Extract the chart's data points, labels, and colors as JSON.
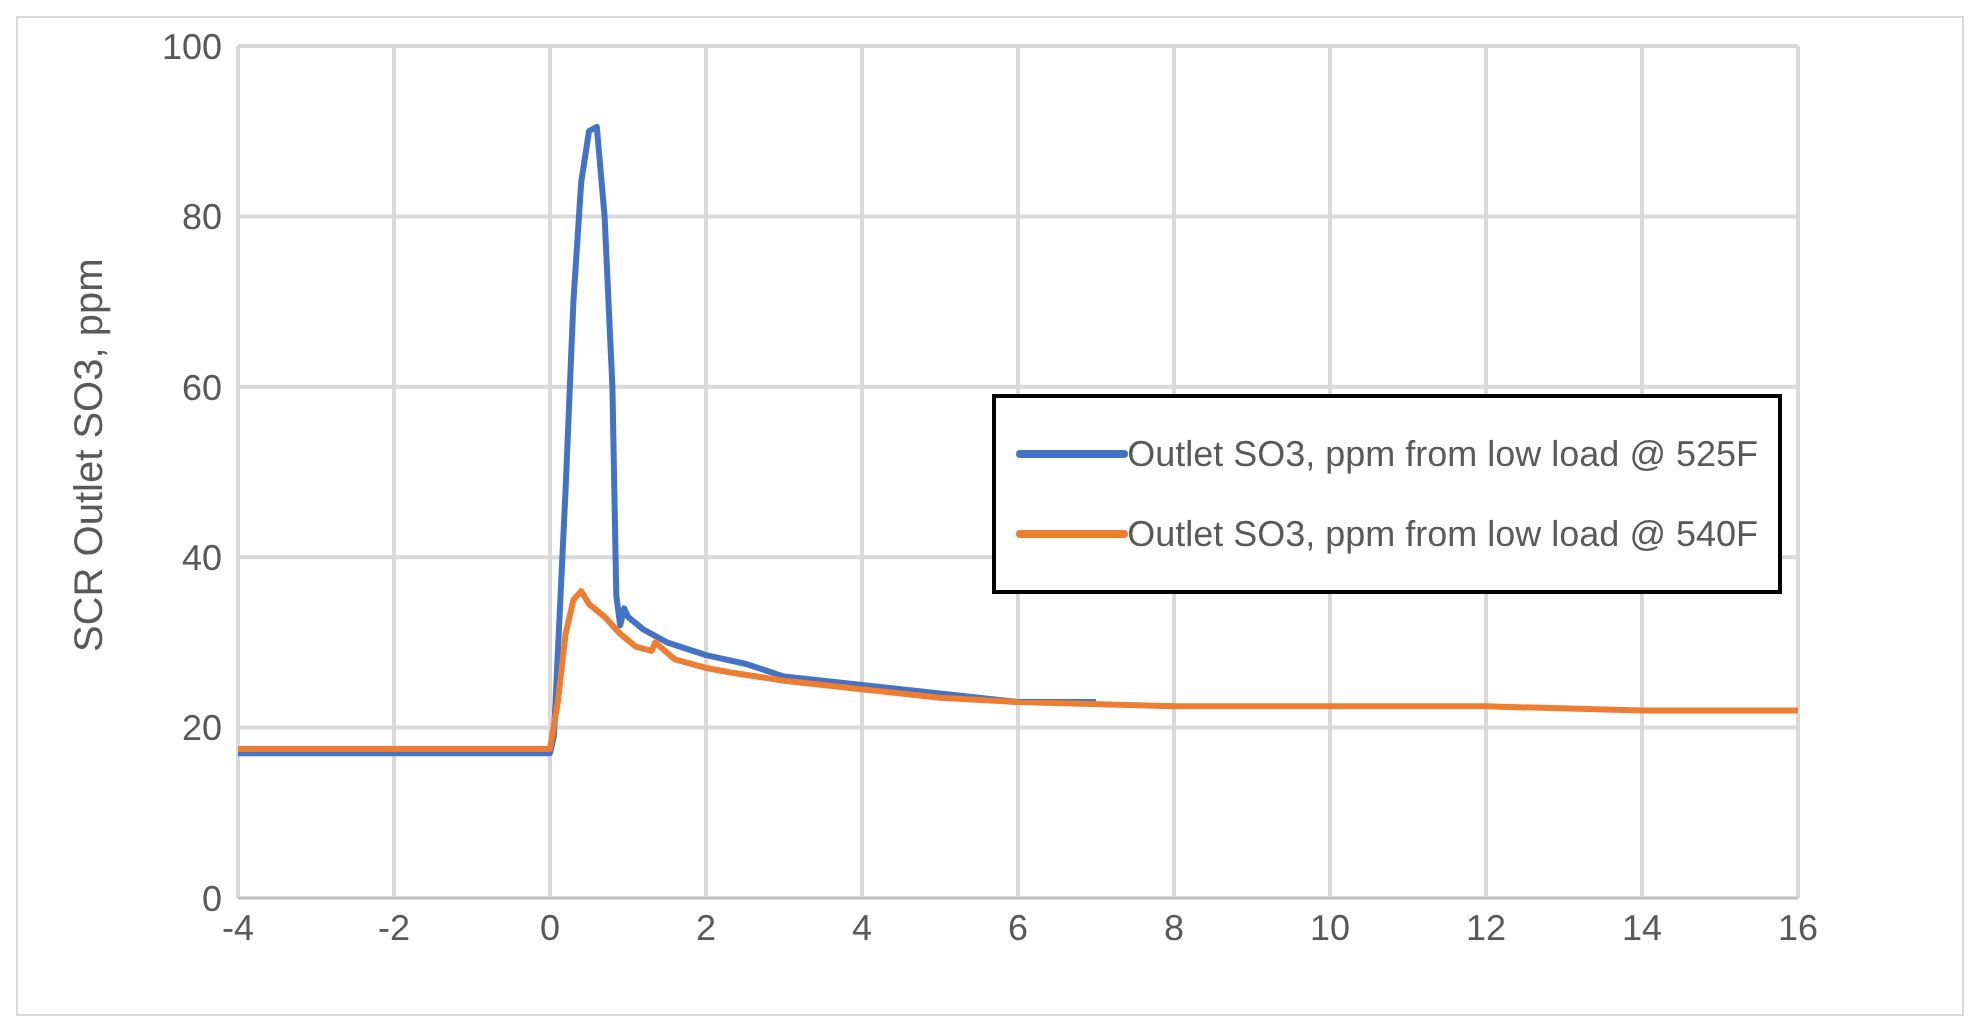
{
  "chart_data": {
    "type": "line",
    "ylabel": "SCR Outlet SO3, ppm",
    "xlim": [
      -4,
      16
    ],
    "xticks": [
      -4,
      -2,
      0,
      2,
      4,
      6,
      8,
      10,
      12,
      14,
      16
    ],
    "ylim": [
      0,
      100
    ],
    "yticks": [
      0,
      20,
      40,
      60,
      80,
      100
    ],
    "grid": true,
    "legend": "right",
    "marker": "none",
    "line_style": "solid",
    "series": [
      {
        "name": "Outlet SO3, ppm from low load @ 525F",
        "color": "#4472c4",
        "x": [
          -4,
          0,
          0.05,
          0.2,
          0.3,
          0.4,
          0.5,
          0.6,
          0.7,
          0.8,
          0.85,
          0.9,
          0.95,
          1,
          1.2,
          1.5,
          2,
          2.5,
          3,
          4,
          5,
          6,
          7
        ],
        "values": [
          17,
          17,
          19,
          48,
          70,
          84,
          90,
          90.5,
          80,
          60,
          35.5,
          32,
          34,
          33,
          31.5,
          30,
          28.5,
          27.5,
          26,
          25,
          24,
          23,
          23
        ]
      },
      {
        "name": "Outlet SO3, ppm from low load @ 540F",
        "color": "#ed7d31",
        "x": [
          -4,
          0,
          0.1,
          0.2,
          0.3,
          0.4,
          0.5,
          0.7,
          0.9,
          1.1,
          1.3,
          1.35,
          1.6,
          2,
          2.3,
          3,
          4,
          5,
          6,
          8,
          10,
          12,
          14,
          16
        ],
        "values": [
          17.5,
          17.5,
          23,
          31,
          35,
          36,
          34.5,
          33,
          31,
          29.5,
          29,
          30,
          28,
          27,
          26.5,
          25.5,
          24.5,
          23.5,
          23,
          22.5,
          22.5,
          22.5,
          22,
          22
        ]
      }
    ]
  }
}
